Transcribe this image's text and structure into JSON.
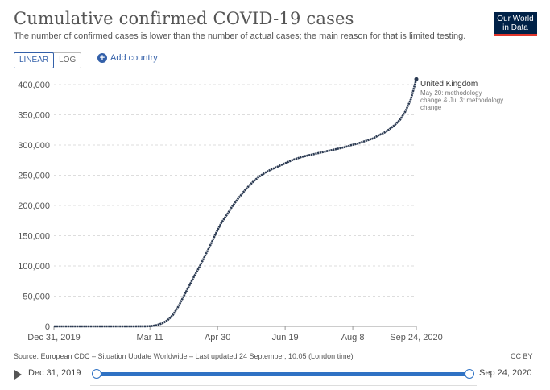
{
  "header": {
    "title": "Cumulative confirmed COVID-19 cases",
    "subtitle": "The number of confirmed cases is lower than the number of actual cases; the main reason for that is limited testing.",
    "logo_line1": "Our World",
    "logo_line2": "in Data"
  },
  "controls": {
    "linear_label": "LINEAR",
    "log_label": "LOG",
    "add_country_label": "Add country"
  },
  "footer": {
    "source": "Source: European CDC – Situation Update Worldwide – Last updated 24 September, 10:05 (London time)",
    "license": "CC BY"
  },
  "timeline": {
    "start_label": "Dec 31, 2019",
    "end_label": "Sep 24, 2020"
  },
  "colors": {
    "series": "#2b3a52",
    "grid": "#dddddd",
    "accent": "#3360a9"
  },
  "chart_data": {
    "type": "line",
    "title": "Cumulative confirmed COVID-19 cases",
    "xlabel": "",
    "ylabel": "",
    "ylim": [
      0,
      400000
    ],
    "xlim_days": [
      0,
      268
    ],
    "grid": true,
    "x_ticks": [
      {
        "label": "Dec 31, 2019",
        "day": 0
      },
      {
        "label": "Mar 11",
        "day": 71
      },
      {
        "label": "Apr 30",
        "day": 121
      },
      {
        "label": "Jun 19",
        "day": 171
      },
      {
        "label": "Aug 8",
        "day": 221
      },
      {
        "label": "Sep 24, 2020",
        "day": 268
      }
    ],
    "y_ticks": [
      {
        "label": "0",
        "value": 0
      },
      {
        "label": "50,000",
        "value": 50000
      },
      {
        "label": "100,000",
        "value": 100000
      },
      {
        "label": "150,000",
        "value": 150000
      },
      {
        "label": "200,000",
        "value": 200000
      },
      {
        "label": "250,000",
        "value": 250000
      },
      {
        "label": "300,000",
        "value": 300000
      },
      {
        "label": "350,000",
        "value": 350000
      },
      {
        "label": "400,000",
        "value": 400000
      }
    ],
    "series": [
      {
        "name": "United Kingdom",
        "annotation": [
          "May 20: methodology",
          "change & Jul 3: methodology",
          "change"
        ],
        "points": [
          [
            0,
            0
          ],
          [
            60,
            0
          ],
          [
            68,
            200
          ],
          [
            72,
            600
          ],
          [
            76,
            2000
          ],
          [
            80,
            5000
          ],
          [
            84,
            10000
          ],
          [
            88,
            19000
          ],
          [
            92,
            33000
          ],
          [
            96,
            50000
          ],
          [
            100,
            67000
          ],
          [
            104,
            84000
          ],
          [
            108,
            100000
          ],
          [
            112,
            118000
          ],
          [
            116,
            136000
          ],
          [
            120,
            155000
          ],
          [
            124,
            172000
          ],
          [
            128,
            185000
          ],
          [
            132,
            199000
          ],
          [
            136,
            211000
          ],
          [
            140,
            222000
          ],
          [
            144,
            232000
          ],
          [
            148,
            241000
          ],
          [
            152,
            248000
          ],
          [
            156,
            254000
          ],
          [
            160,
            259000
          ],
          [
            164,
            263000
          ],
          [
            168,
            267000
          ],
          [
            172,
            271000
          ],
          [
            176,
            275000
          ],
          [
            180,
            278000
          ],
          [
            184,
            281000
          ],
          [
            188,
            283000
          ],
          [
            192,
            285000
          ],
          [
            196,
            287000
          ],
          [
            200,
            289000
          ],
          [
            204,
            291000
          ],
          [
            208,
            293000
          ],
          [
            212,
            295000
          ],
          [
            216,
            297000
          ],
          [
            220,
            300000
          ],
          [
            224,
            302000
          ],
          [
            228,
            305000
          ],
          [
            232,
            308000
          ],
          [
            236,
            311000
          ],
          [
            240,
            316000
          ],
          [
            244,
            320000
          ],
          [
            248,
            326000
          ],
          [
            252,
            333000
          ],
          [
            256,
            342000
          ],
          [
            260,
            356000
          ],
          [
            264,
            376000
          ],
          [
            268,
            409000
          ]
        ]
      }
    ]
  }
}
